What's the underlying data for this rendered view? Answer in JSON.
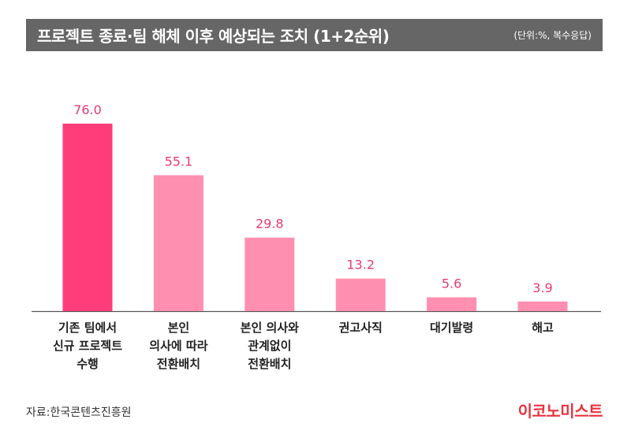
{
  "header": {
    "title": "프로젝트 종료·팀 해체 이후 예상되는 조치 (1+2순위)",
    "unit_note": "(단위:%, 복수응답)"
  },
  "footer": {
    "source": "자료:한국콘텐츠진흥원",
    "brand": "이코노미스트"
  },
  "colors": {
    "highlight_bar": "#ff3d7a",
    "bar": "#ff8fb0",
    "value_text": "#e43a72",
    "title_bg": "#666666",
    "brand": "#e8343f"
  },
  "chart_data": {
    "type": "bar",
    "title": "프로젝트 종료·팀 해체 이후 예상되는 조치 (1+2순위)",
    "unit": "(단위:%, 복수응답)",
    "categories": [
      [
        "기존 팀에서",
        "신규 프로젝트",
        "수행"
      ],
      [
        "본인",
        "의사에 따라",
        "전환배치"
      ],
      [
        "본인 의사와",
        "관계없이",
        "전환배치"
      ],
      [
        "권고사직"
      ],
      [
        "대기발령"
      ],
      [
        "해고"
      ]
    ],
    "values": [
      76.0,
      55.1,
      29.8,
      13.2,
      5.6,
      3.9
    ],
    "value_labels": [
      "76.0",
      "55.1",
      "29.8",
      "13.2",
      "5.6",
      "3.9"
    ],
    "highlight_index": 0,
    "ylim": [
      0,
      76
    ],
    "grid": false,
    "legend": "none"
  }
}
